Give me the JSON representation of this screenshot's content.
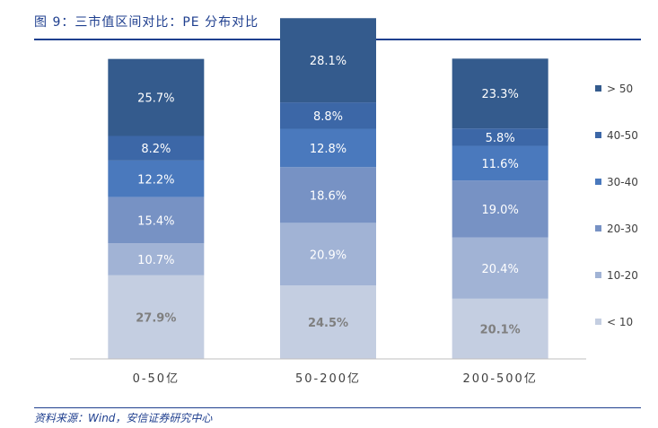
{
  "header": {
    "title": "图 9：三市值区间对比：PE 分布对比"
  },
  "footer": {
    "source": "资料来源：Wind，安信证券研究中心"
  },
  "chart_data": {
    "type": "bar",
    "stacked": true,
    "normalized": true,
    "title": "三市值区间对比：PE 分布对比",
    "categories": [
      "0-50亿",
      "50-200亿",
      "200-500亿"
    ],
    "series": [
      {
        "name": "< 10",
        "values": [
          27.9,
          24.5,
          20.1
        ],
        "color": "#c4cee1"
      },
      {
        "name": "10-20",
        "values": [
          10.7,
          20.9,
          20.4
        ],
        "color": "#a1b3d5"
      },
      {
        "name": "20-30",
        "values": [
          15.4,
          18.6,
          19.0
        ],
        "color": "#7792c4"
      },
      {
        "name": "30-40",
        "values": [
          12.2,
          12.8,
          11.6
        ],
        "color": "#4a79bd"
      },
      {
        "name": "40-50",
        "values": [
          8.2,
          8.8,
          5.8
        ],
        "color": "#3c67a7"
      },
      {
        "name": "> 50",
        "values": [
          25.7,
          28.1,
          23.3
        ],
        "color": "#345b8d"
      }
    ],
    "data_labels": [
      [
        "27.9%",
        "24.5%",
        "20.1%"
      ],
      [
        "10.7%",
        "20.9%",
        "20.4%"
      ],
      [
        "15.4%",
        "18.6%",
        "19.0%"
      ],
      [
        "12.2%",
        "12.8%",
        "11.6%"
      ],
      [
        "8.2%",
        "8.8%",
        "5.8%"
      ],
      [
        "25.7%",
        "28.1%",
        "23.3%"
      ]
    ],
    "label_colors": {
      "light": "#7f7f7f",
      "dark": "#ffffff"
    },
    "legend_position": "right",
    "legend_order": [
      "> 50",
      "40-50",
      "30-40",
      "20-30",
      "10-20",
      "< 10"
    ],
    "xlabel": "",
    "ylabel": "",
    "ylim": [
      0,
      100
    ],
    "axis_color": "#bfbfbf"
  }
}
